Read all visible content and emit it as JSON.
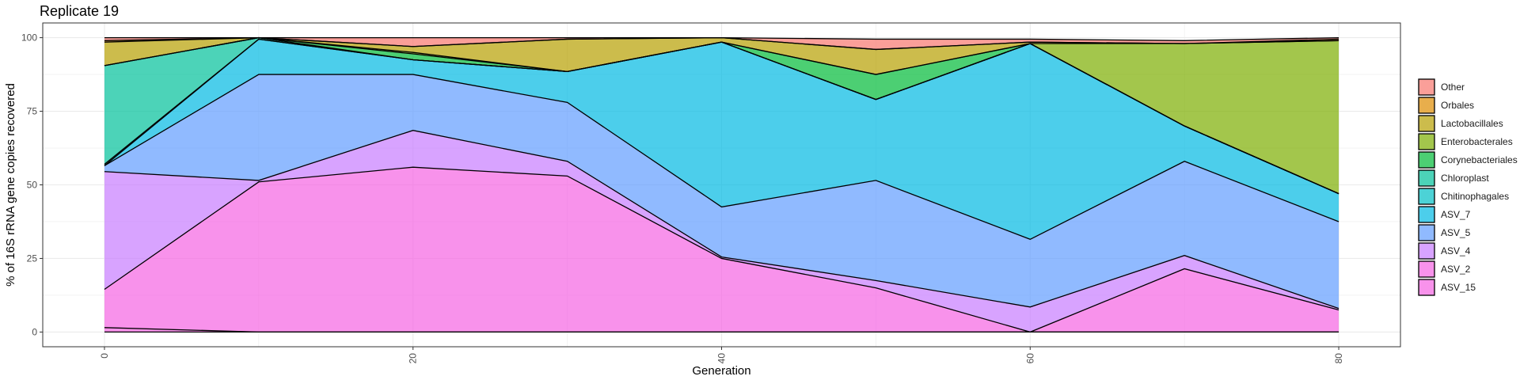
{
  "chart_data": {
    "type": "area",
    "title": "Replicate 19",
    "xlabel": "Generation",
    "ylabel": "% of 16S rRNA gene copies recovered",
    "xlim": [
      -4,
      84
    ],
    "ylim": [
      -5,
      105
    ],
    "x_ticks": [
      0,
      20,
      40,
      60,
      80
    ],
    "y_ticks": [
      0,
      25,
      50,
      75,
      100
    ],
    "grid": true,
    "legend_position": "right",
    "x": [
      0,
      10,
      20,
      30,
      40,
      50,
      60,
      70,
      80
    ],
    "series": [
      {
        "name": "ASV_15",
        "color": "#F564E3",
        "values": [
          1.5,
          0,
          0,
          0,
          0,
          0,
          0,
          0,
          0
        ]
      },
      {
        "name": "ASV_2",
        "color": "#F564E3",
        "values": [
          13,
          51,
          56,
          53,
          25,
          15,
          0,
          21.5,
          7.5
        ]
      },
      {
        "name": "ASV_4",
        "color": "#C77CFF",
        "values": [
          40,
          0.5,
          12.5,
          5,
          0.5,
          2.5,
          8.5,
          4.5,
          0.5
        ]
      },
      {
        "name": "ASV_5",
        "color": "#619CFF",
        "values": [
          2,
          36,
          19,
          20,
          17,
          34,
          23,
          32,
          29.5
        ]
      },
      {
        "name": "ASV_7",
        "color": "#00B9E3",
        "values": [
          0,
          12,
          5,
          10.5,
          56,
          27.5,
          66.5,
          12,
          9.5
        ]
      },
      {
        "name": "Chitinophagales",
        "color": "#00BFC4",
        "values": [
          0.5,
          0,
          0,
          0,
          0,
          0,
          0,
          0,
          0
        ]
      },
      {
        "name": "Chloroplast",
        "color": "#00C19A",
        "values": [
          33.5,
          0.5,
          0,
          0,
          0,
          0,
          0,
          0,
          0
        ]
      },
      {
        "name": "Corynebacteriales",
        "color": "#00BA38",
        "values": [
          0,
          0,
          2,
          0,
          0,
          8.5,
          0,
          0,
          0
        ]
      },
      {
        "name": "Enterobacterales",
        "color": "#7CAE00",
        "values": [
          0,
          0,
          0.5,
          0,
          0,
          0,
          0,
          28,
          52
        ]
      },
      {
        "name": "Lactobacillales",
        "color": "#B79F00",
        "values": [
          8,
          0,
          2,
          11,
          1.5,
          8.5,
          0.5,
          0,
          0
        ]
      },
      {
        "name": "Orbales",
        "color": "#DE8C00",
        "values": [
          0.5,
          0,
          0,
          0,
          0,
          0,
          0,
          0,
          0.5
        ]
      },
      {
        "name": "Other",
        "color": "#F8766D",
        "values": [
          1,
          0,
          3,
          0.5,
          0,
          3.5,
          1,
          1,
          0.5
        ]
      }
    ],
    "legend_order": [
      "Other",
      "Orbales",
      "Lactobacillales",
      "Enterobacterales",
      "Corynebacteriales",
      "Chloroplast",
      "Chitinophagales",
      "ASV_7",
      "ASV_5",
      "ASV_4",
      "ASV_2",
      "ASV_15"
    ]
  }
}
